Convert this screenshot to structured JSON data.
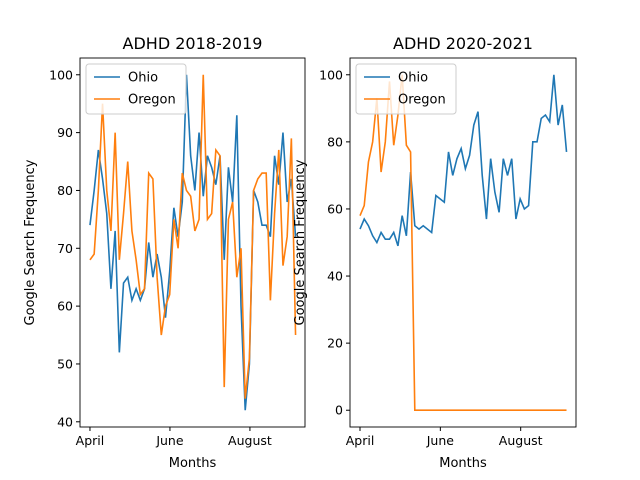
{
  "chart_data": [
    {
      "type": "line",
      "title": "ADHD 2018-2019",
      "xlabel": "Months",
      "ylabel": "Google Search Frequency",
      "x": [
        0,
        3.2,
        6.4,
        9.6,
        12.8,
        16,
        19.2,
        22.4,
        25.6,
        28.8,
        32,
        35.2,
        38.4,
        41.6,
        44.8,
        48,
        51.2,
        54.4,
        57.6,
        60.8,
        64,
        67.2,
        70.4,
        73.6,
        76.8,
        80,
        83.2,
        86.4,
        89.6,
        92.8,
        96,
        99.2,
        102.4,
        105.6,
        108.8,
        112,
        115.2,
        118.4,
        121.6,
        124.8,
        128,
        131.2,
        134.4,
        137.6,
        140.8,
        144,
        147.2,
        150.4,
        153.6,
        156.8
      ],
      "series": [
        {
          "name": "Ohio",
          "color": "#1f77b4",
          "values": [
            74,
            80,
            87,
            82,
            76,
            63,
            73,
            52,
            64,
            65,
            61,
            63,
            61,
            63,
            71,
            65,
            69,
            65,
            58,
            66,
            77,
            72,
            78,
            100,
            86,
            80,
            90,
            79,
            86,
            84,
            81,
            86,
            68,
            84,
            78,
            93,
            60,
            42,
            50,
            80,
            78,
            74,
            74,
            72,
            86,
            81,
            90,
            78,
            82,
            72
          ]
        },
        {
          "name": "Oregon",
          "color": "#ff7f0e",
          "values": [
            68,
            69,
            80,
            95,
            80,
            73,
            90,
            68,
            76,
            85,
            73,
            68,
            62,
            63,
            83,
            82,
            65,
            55,
            60,
            62,
            75,
            70,
            83,
            80,
            79,
            73,
            75,
            100,
            75,
            76,
            87,
            86,
            46,
            75,
            78,
            65,
            70,
            44,
            51,
            80,
            82,
            83,
            83,
            61,
            76,
            87,
            67,
            72,
            89,
            55
          ]
        }
      ],
      "xlim": [
        -7.6,
        164
      ],
      "xticks": [
        {
          "value": 0,
          "label": "April"
        },
        {
          "value": 61,
          "label": "June"
        },
        {
          "value": 122,
          "label": "August"
        }
      ],
      "ylim": [
        39.1,
        102.9
      ],
      "yticks": [
        40,
        50,
        60,
        70,
        80,
        90,
        100
      ],
      "legend": "upper left"
    },
    {
      "type": "line",
      "title": "ADHD 2020-2021",
      "xlabel": "Months",
      "ylabel": "Google Search Frequency",
      "x": [
        0,
        3.2,
        6.4,
        9.6,
        12.8,
        16,
        19.2,
        22.4,
        25.6,
        28.8,
        32,
        35.2,
        38.4,
        41.6,
        44.8,
        48,
        51.2,
        54.4,
        57.6,
        60.8,
        64,
        67.2,
        70.4,
        73.6,
        76.8,
        80,
        83.2,
        86.4,
        89.6,
        92.8,
        96,
        99.2,
        102.4,
        105.6,
        108.8,
        112,
        115.2,
        118.4,
        121.6,
        124.8,
        128,
        131.2,
        134.4,
        137.6,
        140.8,
        144,
        147.2,
        150.4,
        153.6,
        156.8
      ],
      "series": [
        {
          "name": "Ohio",
          "color": "#1f77b4",
          "values": [
            54,
            57,
            55,
            52,
            50,
            53,
            51,
            51,
            53,
            49,
            58,
            52,
            71,
            55,
            54,
            55,
            54,
            53,
            64,
            63,
            62,
            77,
            70,
            75,
            78,
            72,
            76,
            85,
            89,
            70,
            57,
            75,
            65,
            59,
            75,
            70,
            75,
            57,
            63,
            60,
            61,
            80,
            80,
            87,
            88,
            86,
            100,
            85,
            91,
            77
          ]
        },
        {
          "name": "Oregon",
          "color": "#ff7f0e",
          "values": [
            58,
            61,
            74,
            80,
            93,
            71,
            80,
            98,
            79,
            88,
            100,
            79,
            77,
            0,
            0,
            0,
            0,
            0,
            0,
            0,
            0,
            0,
            0,
            0,
            0,
            0,
            0,
            0,
            0,
            0,
            0,
            0,
            0,
            0,
            0,
            0,
            0,
            0,
            0,
            0,
            0,
            0,
            0,
            0,
            0,
            0,
            0,
            0,
            0,
            0
          ]
        }
      ],
      "xlim": [
        -7.6,
        164
      ],
      "xticks": [
        {
          "value": 0,
          "label": "April"
        },
        {
          "value": 61,
          "label": "June"
        },
        {
          "value": 122,
          "label": "August"
        }
      ],
      "ylim": [
        -5,
        105
      ],
      "yticks": [
        0,
        20,
        40,
        60,
        80,
        100
      ],
      "legend": "upper left"
    }
  ]
}
